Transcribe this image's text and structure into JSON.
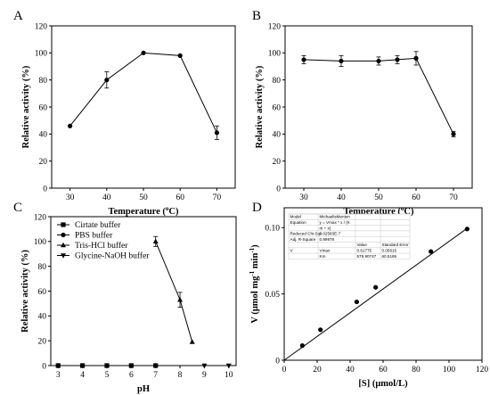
{
  "chart_data": [
    {
      "panel": "A",
      "type": "line",
      "xlabel": "Temperature (",
      "xlabel_sup": "o",
      "xlabel_tail": "C)",
      "ylabel": "Relative activity (%)",
      "xlim": [
        25,
        75
      ],
      "ylim": [
        0,
        120
      ],
      "xticks": [
        30,
        40,
        50,
        60,
        70
      ],
      "yticks": [
        0,
        20,
        40,
        60,
        80,
        100,
        120
      ],
      "series": [
        {
          "marker": "circle",
          "x": [
            30,
            40,
            50,
            60,
            70
          ],
          "y": [
            46,
            80,
            100,
            98,
            41
          ],
          "err": [
            0,
            6,
            0,
            0,
            5
          ]
        }
      ]
    },
    {
      "panel": "B",
      "type": "line",
      "xlabel": "Temperature (",
      "xlabel_sup": "o",
      "xlabel_tail": "C)",
      "ylabel": "Relative activity (%)",
      "xlim": [
        25,
        75
      ],
      "ylim": [
        0,
        120
      ],
      "xticks": [
        30,
        40,
        50,
        60,
        70
      ],
      "yticks": [
        0,
        20,
        40,
        60,
        80,
        100,
        120
      ],
      "series": [
        {
          "marker": "circle",
          "x": [
            30,
            40,
            50,
            55,
            60,
            70
          ],
          "y": [
            95,
            94,
            94,
            95,
            96,
            40
          ],
          "err": [
            3,
            4,
            3,
            3,
            5,
            2
          ]
        }
      ]
    },
    {
      "panel": "C",
      "type": "line",
      "xlabel": "pH",
      "ylabel": "Relative activity (%)",
      "xlim": [
        2.7,
        10.3
      ],
      "ylim": [
        0,
        120
      ],
      "xticks": [
        3,
        4,
        5,
        6,
        7,
        8,
        9,
        10
      ],
      "yticks": [
        0,
        20,
        40,
        60,
        80,
        100,
        120
      ],
      "legend_position": "top-left",
      "series": [
        {
          "name": "Cirtate buffer",
          "marker": "square",
          "x": [
            3,
            4,
            5,
            6,
            7
          ],
          "y": [
            0,
            0,
            0,
            0,
            0
          ],
          "err": [
            0,
            0,
            0,
            0,
            0
          ]
        },
        {
          "name": "PBS buffer",
          "marker": "circle",
          "x": [
            3,
            4,
            5,
            6,
            7
          ],
          "y": [
            0,
            0,
            0,
            0,
            0
          ],
          "err": [
            0,
            0,
            0,
            0,
            0
          ]
        },
        {
          "name": "Tris-HCl buffer",
          "marker": "triangle-up",
          "x": [
            7,
            8,
            8.5
          ],
          "y": [
            100,
            53,
            19
          ],
          "err": [
            4,
            6,
            0
          ]
        },
        {
          "name": "Glycine-NaOH buffer",
          "marker": "triangle-down",
          "x": [
            9,
            10
          ],
          "y": [
            0,
            0
          ],
          "err": [
            0,
            0
          ]
        }
      ]
    },
    {
      "panel": "D",
      "type": "scatter",
      "xlabel": "[S] (μmol/L)",
      "ylabel": "V (μmol mg",
      "ylabel_sup1": "-1",
      "ylabel_mid": " min",
      "ylabel_sup2": "-1",
      "ylabel_tail": ")",
      "xlim": [
        0,
        120
      ],
      "ylim": [
        0,
        0.115
      ],
      "xticks": [
        0,
        20,
        40,
        60,
        80,
        100,
        120
      ],
      "ytick_values": [
        0,
        0.05,
        0.1
      ],
      "ytick_labels": [
        "0",
        "0.05",
        "0.10"
      ],
      "series": [
        {
          "marker": "circle",
          "x": [
            11,
            22,
            44,
            55.5,
            89,
            111
          ],
          "y": [
            0.011,
            0.023,
            0.044,
            0.055,
            0.082,
            0.099
          ]
        }
      ],
      "fit": {
        "x": [
          0,
          111
        ],
        "y": [
          0,
          0.0995
        ]
      },
      "stats_table": {
        "rows": [
          [
            "Model",
            "MichaelisMenten",
            "",
            ""
          ],
          [
            "Equation",
            "y = Vmax * x / (K",
            "",
            ""
          ],
          [
            "",
            "m + x)",
            "",
            ""
          ],
          [
            "Reduced Chi-Sqr",
            "3.02583E-7",
            "",
            ""
          ],
          [
            "Adj. R-Square",
            "0.99978",
            "",
            ""
          ],
          [
            "",
            "",
            "Value",
            "Standard Error"
          ],
          [
            "V",
            "Vmax",
            "0.61775",
            "0.05615"
          ],
          [
            "",
            "Km",
            "578.90747",
            "60.5165"
          ]
        ]
      }
    }
  ]
}
